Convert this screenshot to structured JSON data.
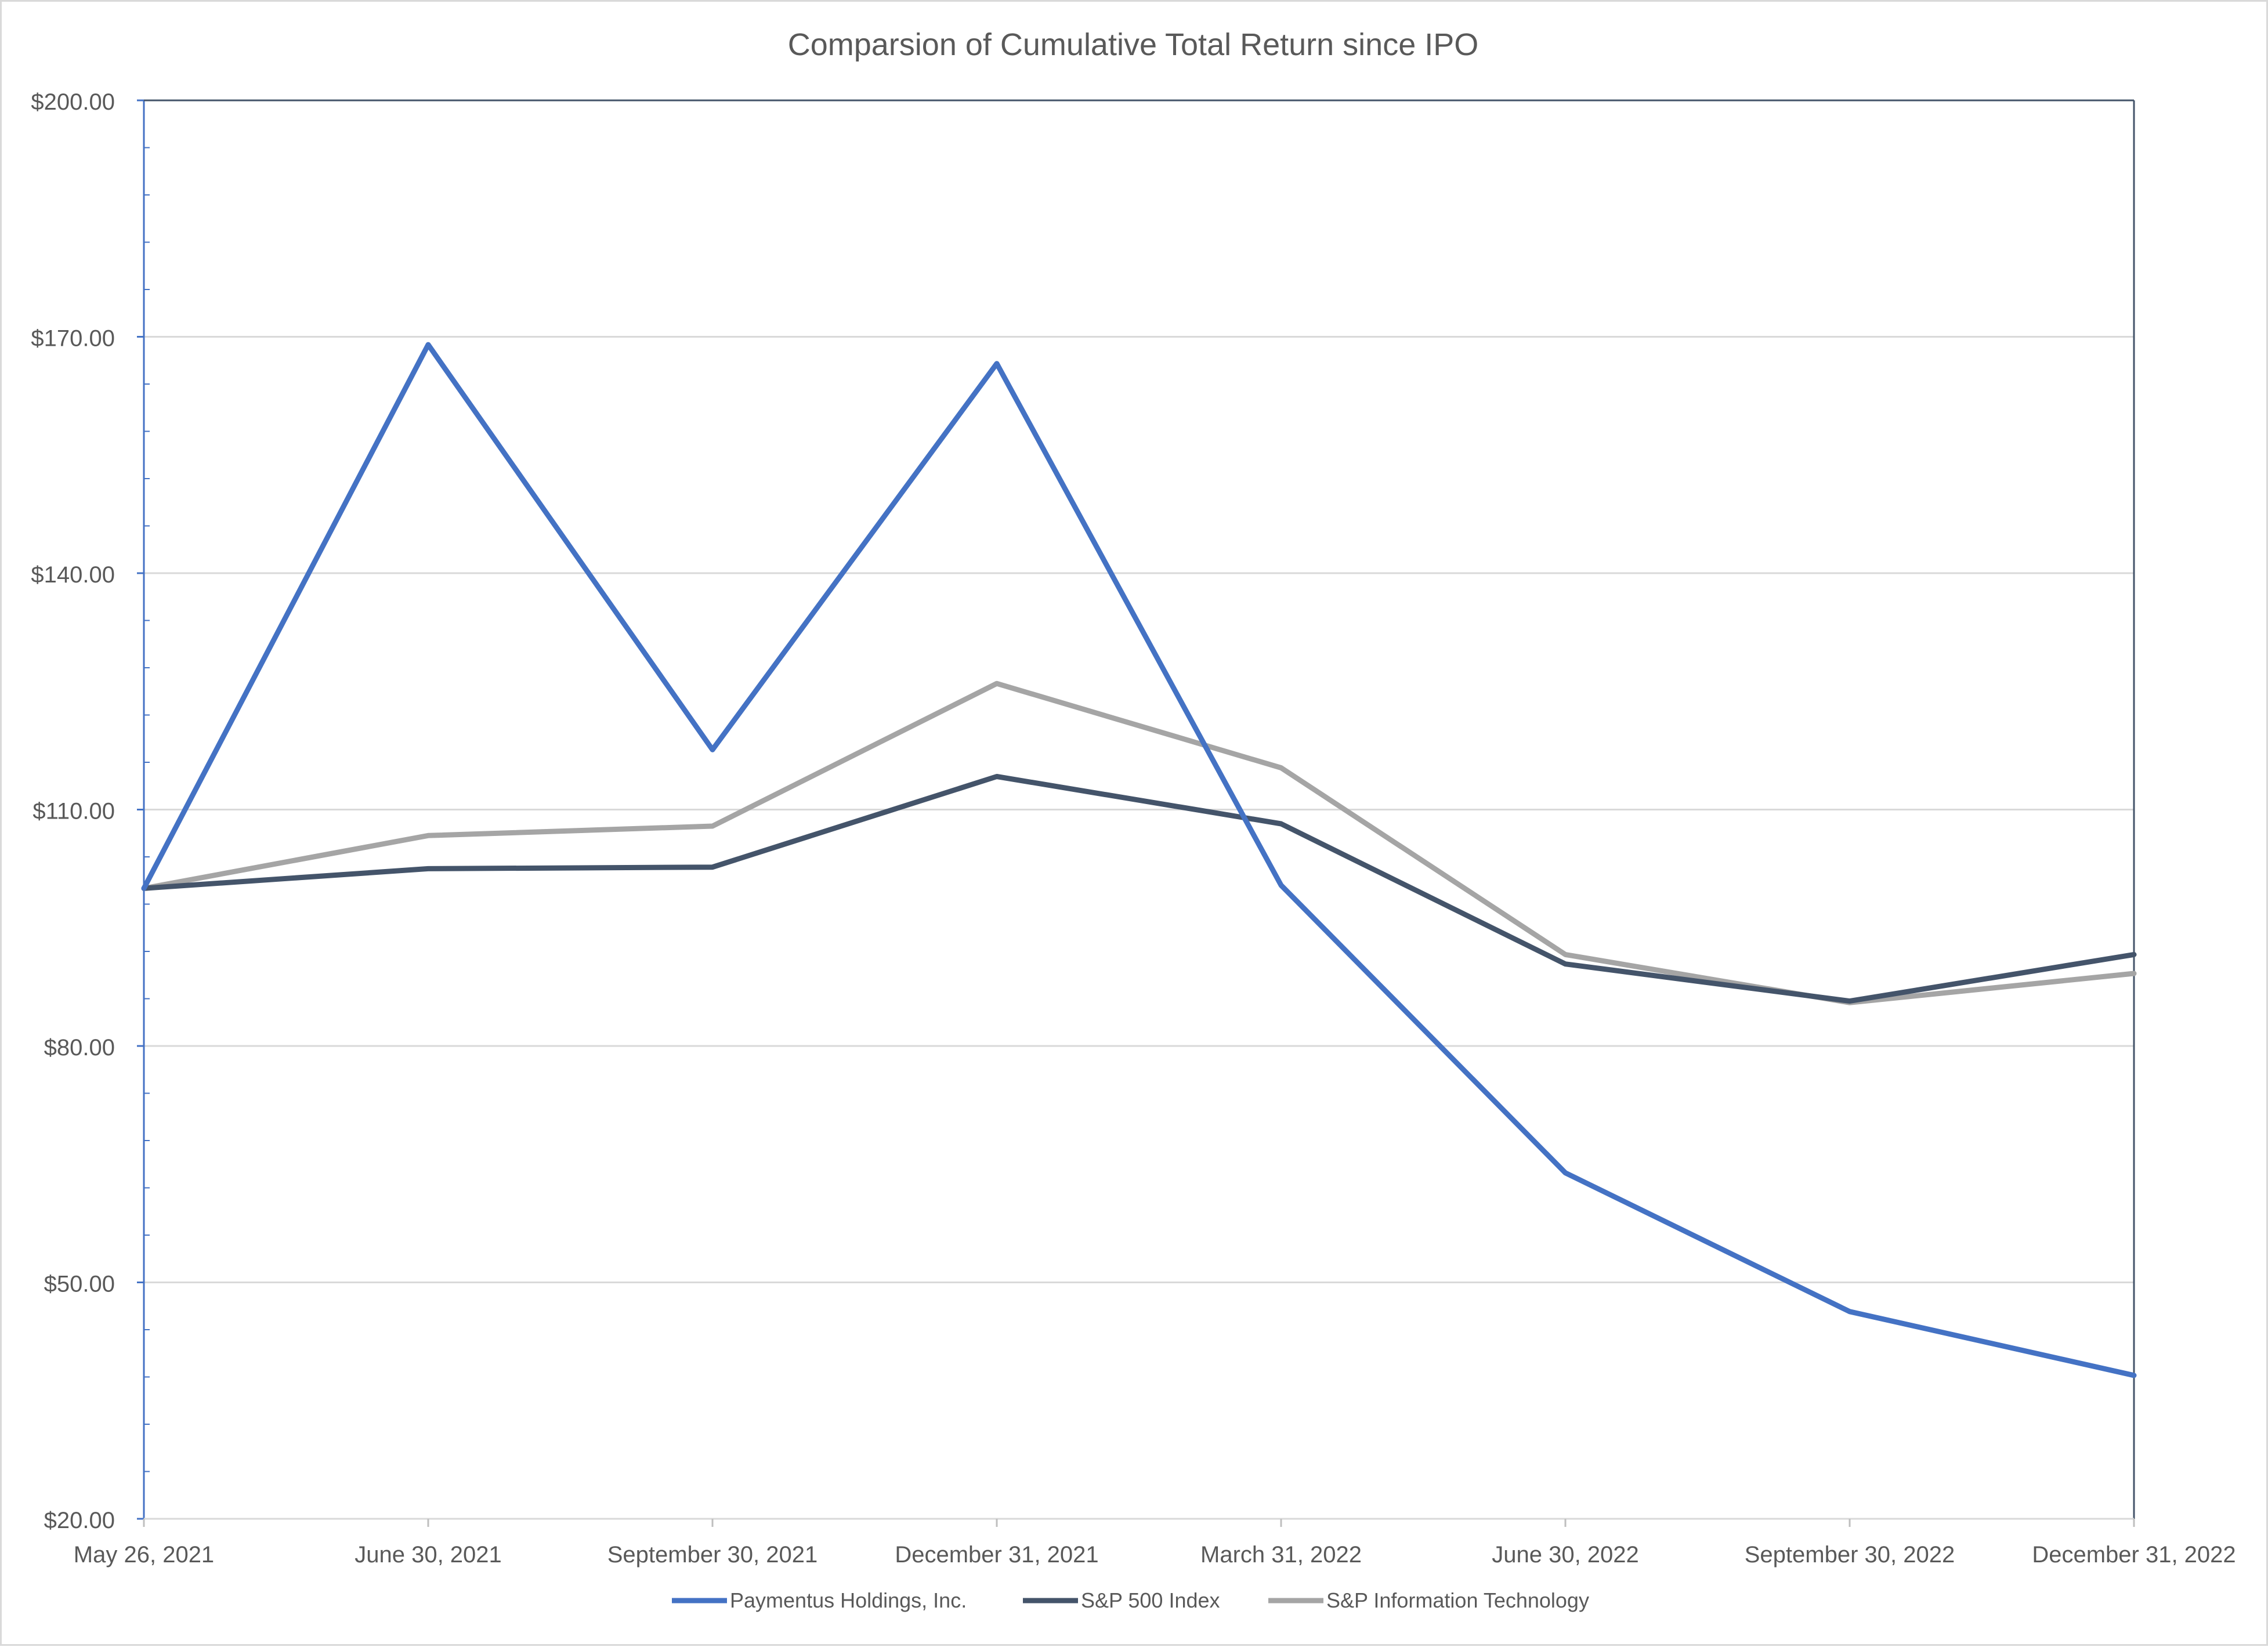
{
  "chart_data": {
    "type": "line",
    "title": "Comparsion of Cumulative Total Return since IPO",
    "xlabel": "",
    "ylabel": "",
    "categories": [
      "May 26, 2021",
      "June 30, 2021",
      "September 30, 2021",
      "December 31, 2021",
      "March 31, 2022",
      "June 30, 2022",
      "September 30, 2022",
      "December 31, 2022"
    ],
    "ylim": [
      20,
      200
    ],
    "y_ticks": [
      "$20.00",
      "$50.00",
      "$80.00",
      "$110.00",
      "$140.00",
      "$170.00",
      "$200.00"
    ],
    "y_tick_values": [
      20,
      50,
      80,
      110,
      140,
      170,
      200
    ],
    "grid": true,
    "legend_position": "bottom",
    "series": [
      {
        "name": "Paymentus Holdings, Inc.",
        "color": "#4472c4",
        "values": [
          100.0,
          169.0,
          117.6,
          166.6,
          100.4,
          63.9,
          46.3,
          38.2
        ]
      },
      {
        "name": "S&P 500 Index",
        "color": "#44546a",
        "values": [
          100.0,
          102.5,
          102.7,
          114.2,
          108.2,
          90.4,
          85.7,
          91.6
        ]
      },
      {
        "name": "S&P Information Technology",
        "color": "#a5a5a5",
        "values": [
          100.0,
          106.7,
          107.9,
          126.0,
          115.3,
          91.6,
          85.5,
          89.2
        ]
      }
    ]
  }
}
